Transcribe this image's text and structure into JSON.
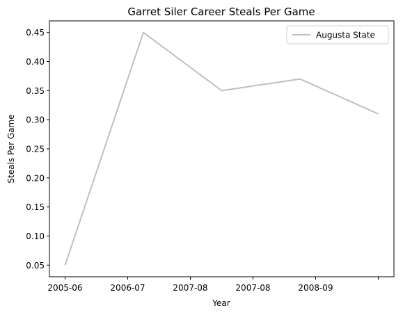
{
  "chart_data": {
    "type": "line",
    "title": "Garret Siler Career Steals Per Game",
    "xlabel": "Year",
    "ylabel": "Steals Per Game",
    "x_tick_labels": [
      "2005-06",
      "2006-07",
      "2007-08",
      "2007-08",
      "2008-09",
      ""
    ],
    "y_ticks": [
      0.05,
      0.1,
      0.15,
      0.2,
      0.25,
      0.3,
      0.35,
      0.4,
      0.45
    ],
    "y_tick_labels": [
      "0.05",
      "0.10",
      "0.15",
      "0.20",
      "0.25",
      "0.30",
      "0.35",
      "0.40",
      "0.45"
    ],
    "ylim": [
      0.03,
      0.47
    ],
    "xlim": [
      -0.2,
      4.2
    ],
    "grid": false,
    "legend_position": "top-right",
    "series": [
      {
        "name": "Augusta State",
        "color": "#bfbfbf",
        "x": [
          0,
          1,
          2,
          3,
          4
        ],
        "values": [
          0.05,
          0.45,
          0.35,
          0.37,
          0.31
        ]
      }
    ]
  }
}
